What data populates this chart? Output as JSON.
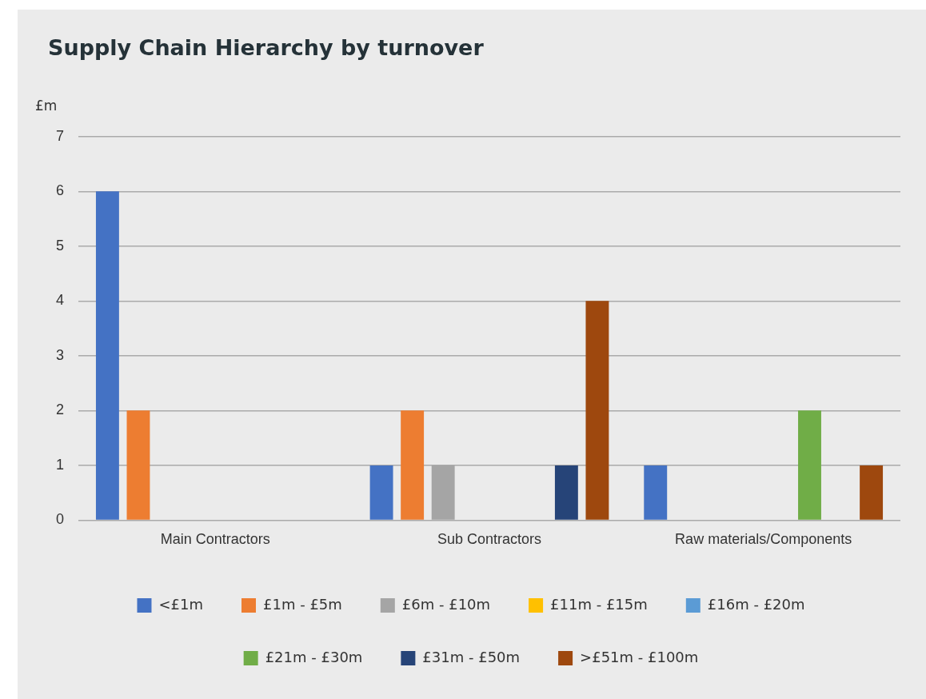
{
  "chart_data": {
    "type": "bar",
    "title": "Supply Chain Hierarchy by turnover",
    "ylabel": "£m",
    "categories": [
      "Main Contractors",
      "Sub Contractors",
      "Raw materials/Components"
    ],
    "series": [
      {
        "name": "<£1m",
        "color": "#4472c4",
        "values": [
          6,
          1,
          1
        ]
      },
      {
        "name": "£1m - £5m",
        "color": "#ed7d31",
        "values": [
          2,
          2,
          null
        ]
      },
      {
        "name": "£6m - £10m",
        "color": "#a5a5a5",
        "values": [
          null,
          1,
          null
        ]
      },
      {
        "name": "£11m - £15m",
        "color": "#ffc000",
        "values": [
          null,
          null,
          null
        ]
      },
      {
        "name": "£16m - £20m",
        "color": "#5b9bd5",
        "values": [
          null,
          null,
          null
        ]
      },
      {
        "name": "£21m - £30m",
        "color": "#70ad47",
        "values": [
          null,
          null,
          2
        ]
      },
      {
        "name": "£31m - £50m",
        "color": "#264478",
        "values": [
          null,
          1,
          null
        ]
      },
      {
        "name": ">£51m - £100m",
        "color": "#9e480e",
        "values": [
          null,
          4,
          1
        ]
      }
    ],
    "ylim": [
      0,
      7
    ],
    "yticks": [
      0,
      1,
      2,
      3,
      4,
      5,
      6,
      7
    ],
    "grid": "y",
    "legend": "bottom"
  }
}
